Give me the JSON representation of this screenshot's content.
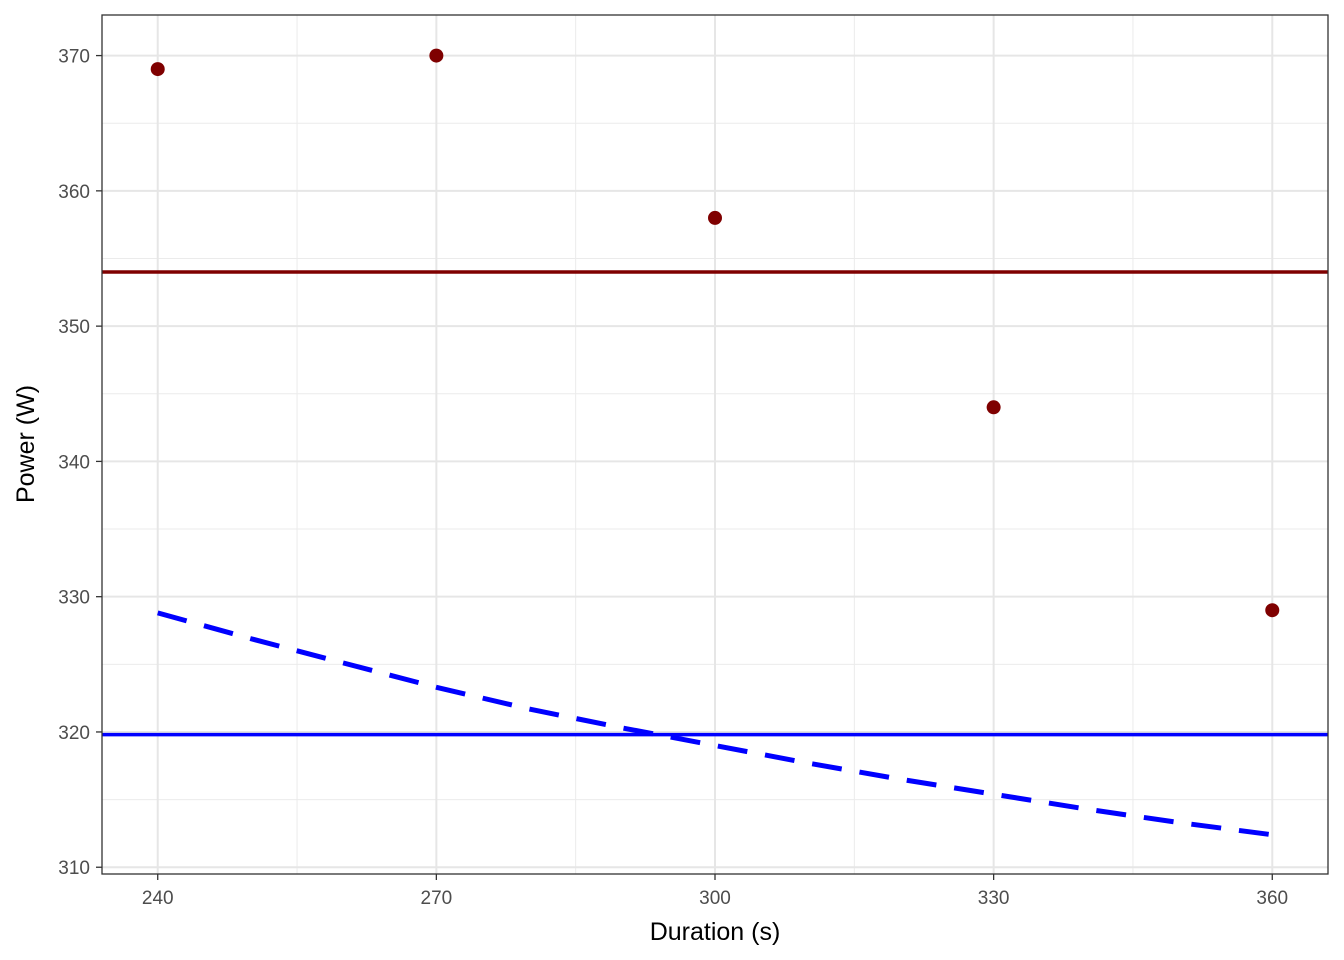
{
  "chart_data": {
    "type": "scatter",
    "xlabel": "Duration (s)",
    "ylabel": "Power (W)",
    "xlim": [
      234,
      366
    ],
    "ylim": [
      309.5,
      373
    ],
    "x_ticks": [
      240,
      270,
      300,
      330,
      360
    ],
    "y_ticks": [
      310,
      320,
      330,
      340,
      350,
      360,
      370
    ],
    "grid": true,
    "points": [
      {
        "x": 240,
        "y": 369
      },
      {
        "x": 270,
        "y": 370
      },
      {
        "x": 300,
        "y": 358
      },
      {
        "x": 330,
        "y": 344
      },
      {
        "x": 360,
        "y": 329
      }
    ],
    "point_color": "#7f0000",
    "hlines": [
      {
        "y": 354,
        "color": "#7f0000",
        "style": "solid"
      },
      {
        "y": 319.8,
        "color": "#0000ff",
        "style": "solid"
      }
    ],
    "curve": {
      "color": "#0000ff",
      "style": "dashed",
      "x": [
        240,
        250,
        260,
        270,
        280,
        290,
        300,
        310,
        320,
        330,
        340,
        350,
        360
      ],
      "y": [
        328.8,
        326.9,
        325.1,
        323.3,
        321.7,
        320.3,
        319.0,
        317.7,
        316.5,
        315.4,
        314.3,
        313.3,
        312.4
      ]
    }
  }
}
